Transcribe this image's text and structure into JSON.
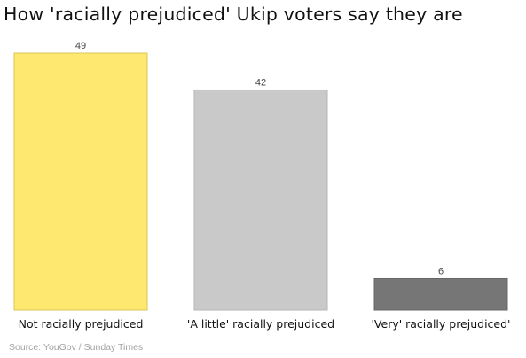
{
  "chart_data": {
    "type": "bar",
    "title": "How 'racially prejudiced' Ukip voters say they are",
    "categories": [
      "Not racially prejudiced",
      "'A little' racially prejudiced",
      "'Very' racially prejudiced'"
    ],
    "values": [
      49,
      42,
      6
    ],
    "data_labels": [
      "49",
      "42",
      "6"
    ],
    "bar_colors": [
      "#ffe86f",
      "#c9c9c9",
      "#767676"
    ],
    "xlabel": "",
    "ylabel": "",
    "ylim": [
      0,
      49
    ],
    "grid": false,
    "legend": "none"
  },
  "source": "Source: YouGov / Sunday Times"
}
